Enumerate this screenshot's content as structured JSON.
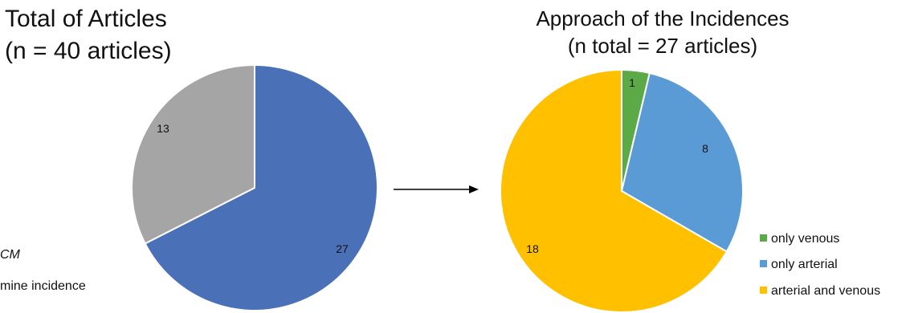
{
  "chart_data": [
    {
      "type": "pie",
      "title": "Total of Articles",
      "subtitle": "(n = 40 articles)",
      "slices": [
        {
          "value": 27,
          "label": "27",
          "color": "#4A70B8"
        },
        {
          "value": 13,
          "label": "13",
          "color": "#A5A5A5"
        }
      ],
      "legend": {
        "placement": "bottom-left",
        "entries": [
          "CM",
          "mine incidence"
        ]
      }
    },
    {
      "type": "pie",
      "title": "Approach of the Incidences",
      "subtitle": "(n total = 27 articles)",
      "slices": [
        {
          "value": 1,
          "label": "1",
          "name": "only venous",
          "color": "#5BAA47"
        },
        {
          "value": 8,
          "label": "8",
          "name": "only arterial",
          "color": "#5B9BD5"
        },
        {
          "value": 18,
          "label": "18",
          "name": "arterial and venous",
          "color": "#FFC000"
        }
      ],
      "legend": {
        "placement": "bottom-right",
        "entries": [
          "only venous",
          "only arterial",
          "arterial and venous"
        ]
      }
    }
  ]
}
